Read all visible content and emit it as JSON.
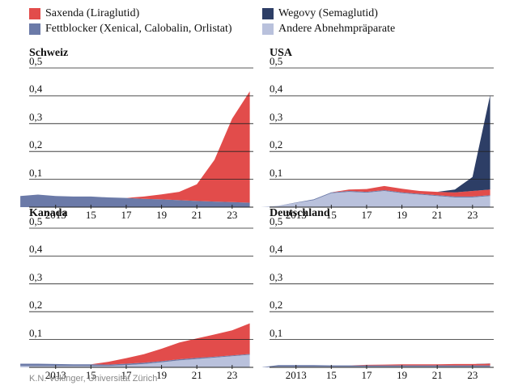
{
  "legend": [
    {
      "label": "Saxenda (Liraglutid)",
      "color": "#e24c4b"
    },
    {
      "label": "Wegovy (Semaglutid)",
      "color": "#2d3e66"
    },
    {
      "label": "Fettblocker (Xenical, Calobalin, Orlistat)",
      "color": "#6b7aa8"
    },
    {
      "label": "Andere Abnehmpräparate",
      "color": "#b9c1dc"
    }
  ],
  "credit": "K.N. Vokinger, Universität Zürich",
  "chart_data": [
    {
      "type": "area",
      "title": "Schweiz",
      "x": [
        2011,
        2012,
        2013,
        2014,
        2015,
        2016,
        2017,
        2018,
        2019,
        2020,
        2021,
        2022,
        2023,
        2024
      ],
      "xticks": [
        "2013",
        "15",
        "17",
        "19",
        "21",
        "23"
      ],
      "yticks": [
        "0,1",
        "0,2",
        "0,3",
        "0,4",
        "0,5"
      ],
      "ylim": [
        0,
        0.5
      ],
      "series": [
        {
          "name": "Andere Abnehmpräparate",
          "values": [
            0,
            0,
            0,
            0,
            0,
            0,
            0,
            0,
            0,
            0,
            0,
            0,
            0,
            0
          ]
        },
        {
          "name": "Fettblocker (Xenical, Calobalin, Orlistat)",
          "values": [
            0.04,
            0.045,
            0.04,
            0.038,
            0.038,
            0.035,
            0.033,
            0.03,
            0.028,
            0.025,
            0.022,
            0.02,
            0.018,
            0.016
          ]
        },
        {
          "name": "Saxenda (Liraglutid)",
          "values": [
            0,
            0,
            0,
            0,
            0,
            0,
            0,
            0.008,
            0.018,
            0.03,
            0.06,
            0.15,
            0.3,
            0.4
          ]
        },
        {
          "name": "Wegovy (Semaglutid)",
          "values": [
            0,
            0,
            0,
            0,
            0,
            0,
            0,
            0,
            0,
            0,
            0,
            0,
            0,
            0
          ]
        }
      ]
    },
    {
      "type": "area",
      "title": "USA",
      "x": [
        2011,
        2012,
        2013,
        2014,
        2015,
        2016,
        2017,
        2018,
        2019,
        2020,
        2021,
        2022,
        2023,
        2024
      ],
      "xticks": [
        "2013",
        "15",
        "17",
        "19",
        "21",
        "23"
      ],
      "yticks": [
        "0,1",
        "0,2",
        "0,3",
        "0,4",
        "0,5"
      ],
      "ylim": [
        0,
        0.5
      ],
      "series": [
        {
          "name": "Andere Abnehmpräparate",
          "values": [
            0,
            0.005,
            0.015,
            0.025,
            0.05,
            0.055,
            0.052,
            0.058,
            0.05,
            0.045,
            0.04,
            0.035,
            0.035,
            0.04
          ]
        },
        {
          "name": "Fettblocker (Xenical, Calobalin, Orlistat)",
          "values": [
            0,
            0,
            0.002,
            0.003,
            0.003,
            0.003,
            0.003,
            0.003,
            0.003,
            0.003,
            0.003,
            0.003,
            0.003,
            0.003
          ]
        },
        {
          "name": "Saxenda (Liraglutid)",
          "values": [
            0,
            0,
            0,
            0,
            0,
            0.005,
            0.01,
            0.015,
            0.013,
            0.01,
            0.012,
            0.015,
            0.02,
            0.02
          ]
        },
        {
          "name": "Wegovy (Semaglutid)",
          "values": [
            0,
            0,
            0,
            0,
            0,
            0,
            0,
            0,
            0,
            0,
            0,
            0.01,
            0.05,
            0.34
          ]
        }
      ]
    },
    {
      "type": "area",
      "title": "Kanada",
      "x": [
        2011,
        2012,
        2013,
        2014,
        2015,
        2016,
        2017,
        2018,
        2019,
        2020,
        2021,
        2022,
        2023,
        2024
      ],
      "xticks": [
        "2013",
        "15",
        "17",
        "19",
        "21",
        "23"
      ],
      "yticks": [
        "0,1",
        "0,2",
        "0,3",
        "0,4",
        "0,5"
      ],
      "ylim": [
        0,
        0.5
      ],
      "series": [
        {
          "name": "Andere Abnehmpräparate",
          "values": [
            0.005,
            0.005,
            0.005,
            0.005,
            0.005,
            0.005,
            0.008,
            0.012,
            0.018,
            0.025,
            0.03,
            0.035,
            0.04,
            0.045
          ]
        },
        {
          "name": "Fettblocker (Xenical, Calobalin, Orlistat)",
          "values": [
            0.008,
            0.008,
            0.007,
            0.006,
            0.006,
            0.005,
            0.005,
            0.005,
            0.004,
            0.004,
            0.004,
            0.003,
            0.003,
            0.003
          ]
        },
        {
          "name": "Saxenda (Liraglutid)",
          "values": [
            0,
            0,
            0,
            0,
            0,
            0.01,
            0.02,
            0.03,
            0.045,
            0.06,
            0.07,
            0.08,
            0.09,
            0.11
          ]
        },
        {
          "name": "Wegovy (Semaglutid)",
          "values": [
            0,
            0,
            0,
            0,
            0,
            0,
            0,
            0,
            0,
            0,
            0,
            0,
            0,
            0
          ]
        }
      ]
    },
    {
      "type": "area",
      "title": "Deutschland",
      "x": [
        2011,
        2012,
        2013,
        2014,
        2015,
        2016,
        2017,
        2018,
        2019,
        2020,
        2021,
        2022,
        2023,
        2024
      ],
      "xticks": [
        "2013",
        "15",
        "17",
        "19",
        "21",
        "23"
      ],
      "yticks": [
        "0,1",
        "0,2",
        "0,3",
        "0,4",
        "0,5"
      ],
      "ylim": [
        0,
        0.5
      ],
      "series": [
        {
          "name": "Andere Abnehmpräparate",
          "values": [
            0,
            0.003,
            0.003,
            0.003,
            0.003,
            0.003,
            0.003,
            0.003,
            0.003,
            0.003,
            0.003,
            0.003,
            0.003,
            0.003
          ]
        },
        {
          "name": "Fettblocker (Xenical, Calobalin, Orlistat)",
          "values": [
            0,
            0.005,
            0.005,
            0.005,
            0.004,
            0.004,
            0.004,
            0.004,
            0.004,
            0.004,
            0.004,
            0.004,
            0.004,
            0.004
          ]
        },
        {
          "name": "Saxenda (Liraglutid)",
          "values": [
            0,
            0,
            0,
            0,
            0,
            0,
            0.002,
            0.003,
            0.004,
            0.004,
            0.004,
            0.005,
            0.005,
            0.006
          ]
        },
        {
          "name": "Wegovy (Semaglutid)",
          "values": [
            0,
            0,
            0,
            0,
            0,
            0,
            0,
            0,
            0,
            0,
            0,
            0,
            0,
            0.001
          ]
        }
      ]
    }
  ]
}
